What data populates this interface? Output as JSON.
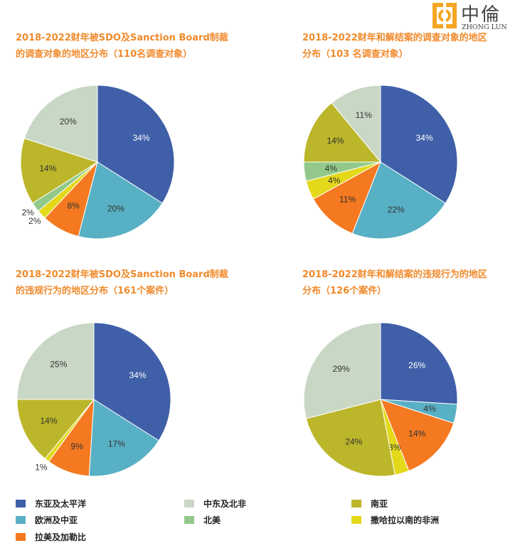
{
  "logo": {
    "cn": "中倫",
    "en": "ZHONG LUN"
  },
  "categories": [
    "东亚及太平洋",
    "欧洲及中亚",
    "拉美及加勒比",
    "撒哈拉以南的非洲",
    "北美",
    "南亚",
    "中东及北非"
  ],
  "colors": {
    "东亚及太平洋": "#3f5fa8",
    "欧洲及中亚": "#58b0c4",
    "拉美及加勒比": "#f47920",
    "撒哈拉以南的非洲": "#e3d81a",
    "北美": "#92c98a",
    "南亚": "#bcb62a",
    "中东及北非": "#c9d7c5",
    "title": "#f08a2c"
  },
  "legend": [
    {
      "label": "东亚及太平洋"
    },
    {
      "label": "欧洲及中亚"
    },
    {
      "label": "拉美及加勒比"
    },
    {
      "label": "中东及北非"
    },
    {
      "label": "北美"
    },
    {
      "label": "南亚"
    },
    {
      "label": "撒哈拉以南的非洲"
    }
  ],
  "chart_data": [
    {
      "type": "pie",
      "title_line1": "2018-2022财年被SDO及Sanction Board制裁",
      "title_line2": "的调查对象的地区分布（110名调查对象）",
      "slices": [
        {
          "category": "东亚及太平洋",
          "value": 34
        },
        {
          "category": "欧洲及中亚",
          "value": 20
        },
        {
          "category": "拉美及加勒比",
          "value": 8
        },
        {
          "category": "撒哈拉以南的非洲",
          "value": 2
        },
        {
          "category": "北美",
          "value": 2
        },
        {
          "category": "南亚",
          "value": 14
        },
        {
          "category": "中东及北非",
          "value": 20
        }
      ]
    },
    {
      "type": "pie",
      "title_line1": "2018-2022财年和解结案的调查对象的地区",
      "title_line2": "分布（103 名调查对象）",
      "slices": [
        {
          "category": "东亚及太平洋",
          "value": 34
        },
        {
          "category": "欧洲及中亚",
          "value": 22
        },
        {
          "category": "拉美及加勒比",
          "value": 11
        },
        {
          "category": "撒哈拉以南的非洲",
          "value": 4
        },
        {
          "category": "北美",
          "value": 4
        },
        {
          "category": "南亚",
          "value": 14
        },
        {
          "category": "中东及北非",
          "value": 11
        }
      ]
    },
    {
      "type": "pie",
      "title_line1": "2018-2022财年被SDO及Sanction Board制裁",
      "title_line2": "的违规行为的地区分布（161个案件）",
      "slices": [
        {
          "category": "东亚及太平洋",
          "value": 34
        },
        {
          "category": "欧洲及中亚",
          "value": 17
        },
        {
          "category": "拉美及加勒比",
          "value": 9
        },
        {
          "category": "撒哈拉以南的非洲",
          "value": 1
        },
        {
          "category": "南亚",
          "value": 14
        },
        {
          "category": "中东及北非",
          "value": 25
        }
      ]
    },
    {
      "type": "pie",
      "title_line1": "2018-2022财年和解结案的违规行为的地区",
      "title_line2": "分布（126个案件）",
      "slices": [
        {
          "category": "东亚及太平洋",
          "value": 26
        },
        {
          "category": "欧洲及中亚",
          "value": 4
        },
        {
          "category": "拉美及加勒比",
          "value": 14
        },
        {
          "category": "撒哈拉以南的非洲",
          "value": 3
        },
        {
          "category": "南亚",
          "value": 24
        },
        {
          "category": "中东及北非",
          "value": 29
        }
      ]
    }
  ]
}
